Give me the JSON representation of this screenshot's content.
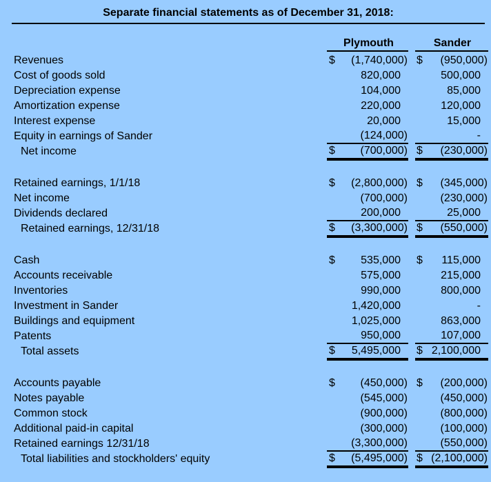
{
  "title": "Separate financial statements as of December 31, 2018:",
  "currency_symbol": "$",
  "columns": {
    "plymouth": "Plymouth",
    "sander": "Sander"
  },
  "colors": {
    "background": "#99CCFF",
    "text": "#000000",
    "rule": "#000000"
  },
  "sections": [
    {
      "rows": [
        {
          "label": "Revenues",
          "pd": true,
          "p": "(1,740,000)",
          "sd": true,
          "s": "(950,000)"
        },
        {
          "label": "Cost of goods sold",
          "p": "820,000",
          "s": "500,000"
        },
        {
          "label": "Depreciation expense",
          "p": "104,000",
          "s": "85,000"
        },
        {
          "label": "Amortization expense",
          "p": "220,000",
          "s": "120,000"
        },
        {
          "label": "Interest expense",
          "p": "20,000",
          "s": "15,000"
        },
        {
          "label": "Equity in earnings of Sander",
          "p": "(124,000)",
          "s": "-",
          "line": "single"
        },
        {
          "label": "Net income",
          "indent": true,
          "pd": true,
          "p": "(700,000)",
          "sd": true,
          "s": "(230,000)",
          "line": "double"
        }
      ]
    },
    {
      "rows": [
        {
          "label": "Retained earnings, 1/1/18",
          "pd": true,
          "p": "(2,800,000)",
          "sd": true,
          "s": "(345,000)"
        },
        {
          "label": "Net income",
          "p": "(700,000)",
          "s": "(230,000)"
        },
        {
          "label": "Dividends declared",
          "p": "200,000",
          "s": "25,000",
          "line": "single"
        },
        {
          "label": "Retained earnings, 12/31/18",
          "indent": true,
          "pd": true,
          "p": "(3,300,000)",
          "sd": true,
          "s": "(550,000)",
          "line": "double"
        }
      ]
    },
    {
      "rows": [
        {
          "label": "Cash",
          "pd": true,
          "p": "535,000",
          "sd": true,
          "s": "115,000"
        },
        {
          "label": "Accounts receivable",
          "p": "575,000",
          "s": "215,000"
        },
        {
          "label": "Inventories",
          "p": "990,000",
          "s": "800,000"
        },
        {
          "label": "Investment in Sander",
          "p": "1,420,000",
          "s": "-"
        },
        {
          "label": "Buildings and equipment",
          "p": "1,025,000",
          "s": "863,000"
        },
        {
          "label": "Patents",
          "p": "950,000",
          "s": "107,000",
          "line": "single"
        },
        {
          "label": "Total assets",
          "indent": true,
          "pd": true,
          "p": "5,495,000",
          "sd": true,
          "s": "2,100,000",
          "line": "double"
        }
      ]
    },
    {
      "rows": [
        {
          "label": "Accounts payable",
          "pd": true,
          "p": "(450,000)",
          "sd": true,
          "s": "(200,000)"
        },
        {
          "label": "Notes payable",
          "p": "(545,000)",
          "s": "(450,000)"
        },
        {
          "label": "Common stock",
          "p": "(900,000)",
          "s": "(800,000)"
        },
        {
          "label": "Additional paid-in capital",
          "p": "(300,000)",
          "s": "(100,000)"
        },
        {
          "label": "Retained earnings 12/31/18",
          "p": "(3,300,000)",
          "s": "(550,000)",
          "line": "single"
        },
        {
          "label": "Total liabilities and stockholders' equity",
          "indent": true,
          "pd": true,
          "p": "(5,495,000)",
          "sd": true,
          "s": "(2,100,000)",
          "line": "double"
        }
      ]
    }
  ]
}
